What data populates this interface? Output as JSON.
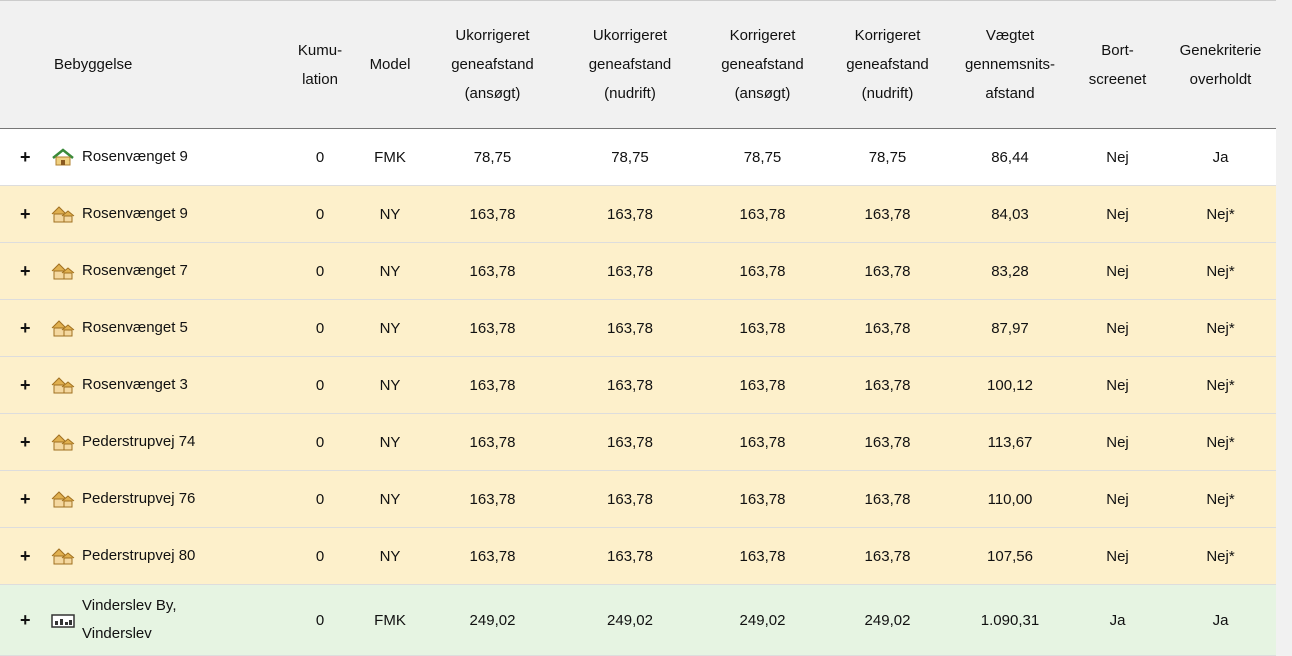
{
  "table": {
    "headers": [
      [
        "Bebyggelse"
      ],
      [
        "Kumu-",
        "lation"
      ],
      [
        "Model"
      ],
      [
        "Ukorrigeret",
        "geneafstand",
        "(ansøgt)"
      ],
      [
        "Ukorrigeret",
        "geneafstand",
        "(nudrift)"
      ],
      [
        "Korrigeret",
        "geneafstand",
        "(ansøgt)"
      ],
      [
        "Korrigeret",
        "geneafstand",
        "(nudrift)"
      ],
      [
        "Vægtet",
        "gennemsnits-",
        "afstand"
      ],
      [
        "Bort-",
        "screenet"
      ],
      [
        "Genekriterie",
        "overholdt"
      ]
    ],
    "expand": "+",
    "rows": [
      [
        "Rosenvænget 9",
        "0",
        "FMK",
        "78,75",
        "78,75",
        "78,75",
        "78,75",
        "86,44",
        "Nej",
        "Ja"
      ],
      [
        "Rosenvænget 9",
        "0",
        "NY",
        "163,78",
        "163,78",
        "163,78",
        "163,78",
        "84,03",
        "Nej",
        "Nej*"
      ],
      [
        "Rosenvænget 7",
        "0",
        "NY",
        "163,78",
        "163,78",
        "163,78",
        "163,78",
        "83,28",
        "Nej",
        "Nej*"
      ],
      [
        "Rosenvænget 5",
        "0",
        "NY",
        "163,78",
        "163,78",
        "163,78",
        "163,78",
        "87,97",
        "Nej",
        "Nej*"
      ],
      [
        "Rosenvænget 3",
        "0",
        "NY",
        "163,78",
        "163,78",
        "163,78",
        "163,78",
        "100,12",
        "Nej",
        "Nej*"
      ],
      [
        "Pederstrupvej 74",
        "0",
        "NY",
        "163,78",
        "163,78",
        "163,78",
        "163,78",
        "113,67",
        "Nej",
        "Nej*"
      ],
      [
        "Pederstrupvej 76",
        "0",
        "NY",
        "163,78",
        "163,78",
        "163,78",
        "163,78",
        "110,00",
        "Nej",
        "Nej*"
      ],
      [
        "Pederstrupvej 80",
        "0",
        "NY",
        "163,78",
        "163,78",
        "163,78",
        "163,78",
        "107,56",
        "Nej",
        "Nej*"
      ],
      [
        "Vinderslev By, Vinderslev",
        "0",
        "FMK",
        "249,02",
        "249,02",
        "249,02",
        "249,02",
        "1.090,31",
        "Ja",
        "Ja"
      ]
    ]
  }
}
